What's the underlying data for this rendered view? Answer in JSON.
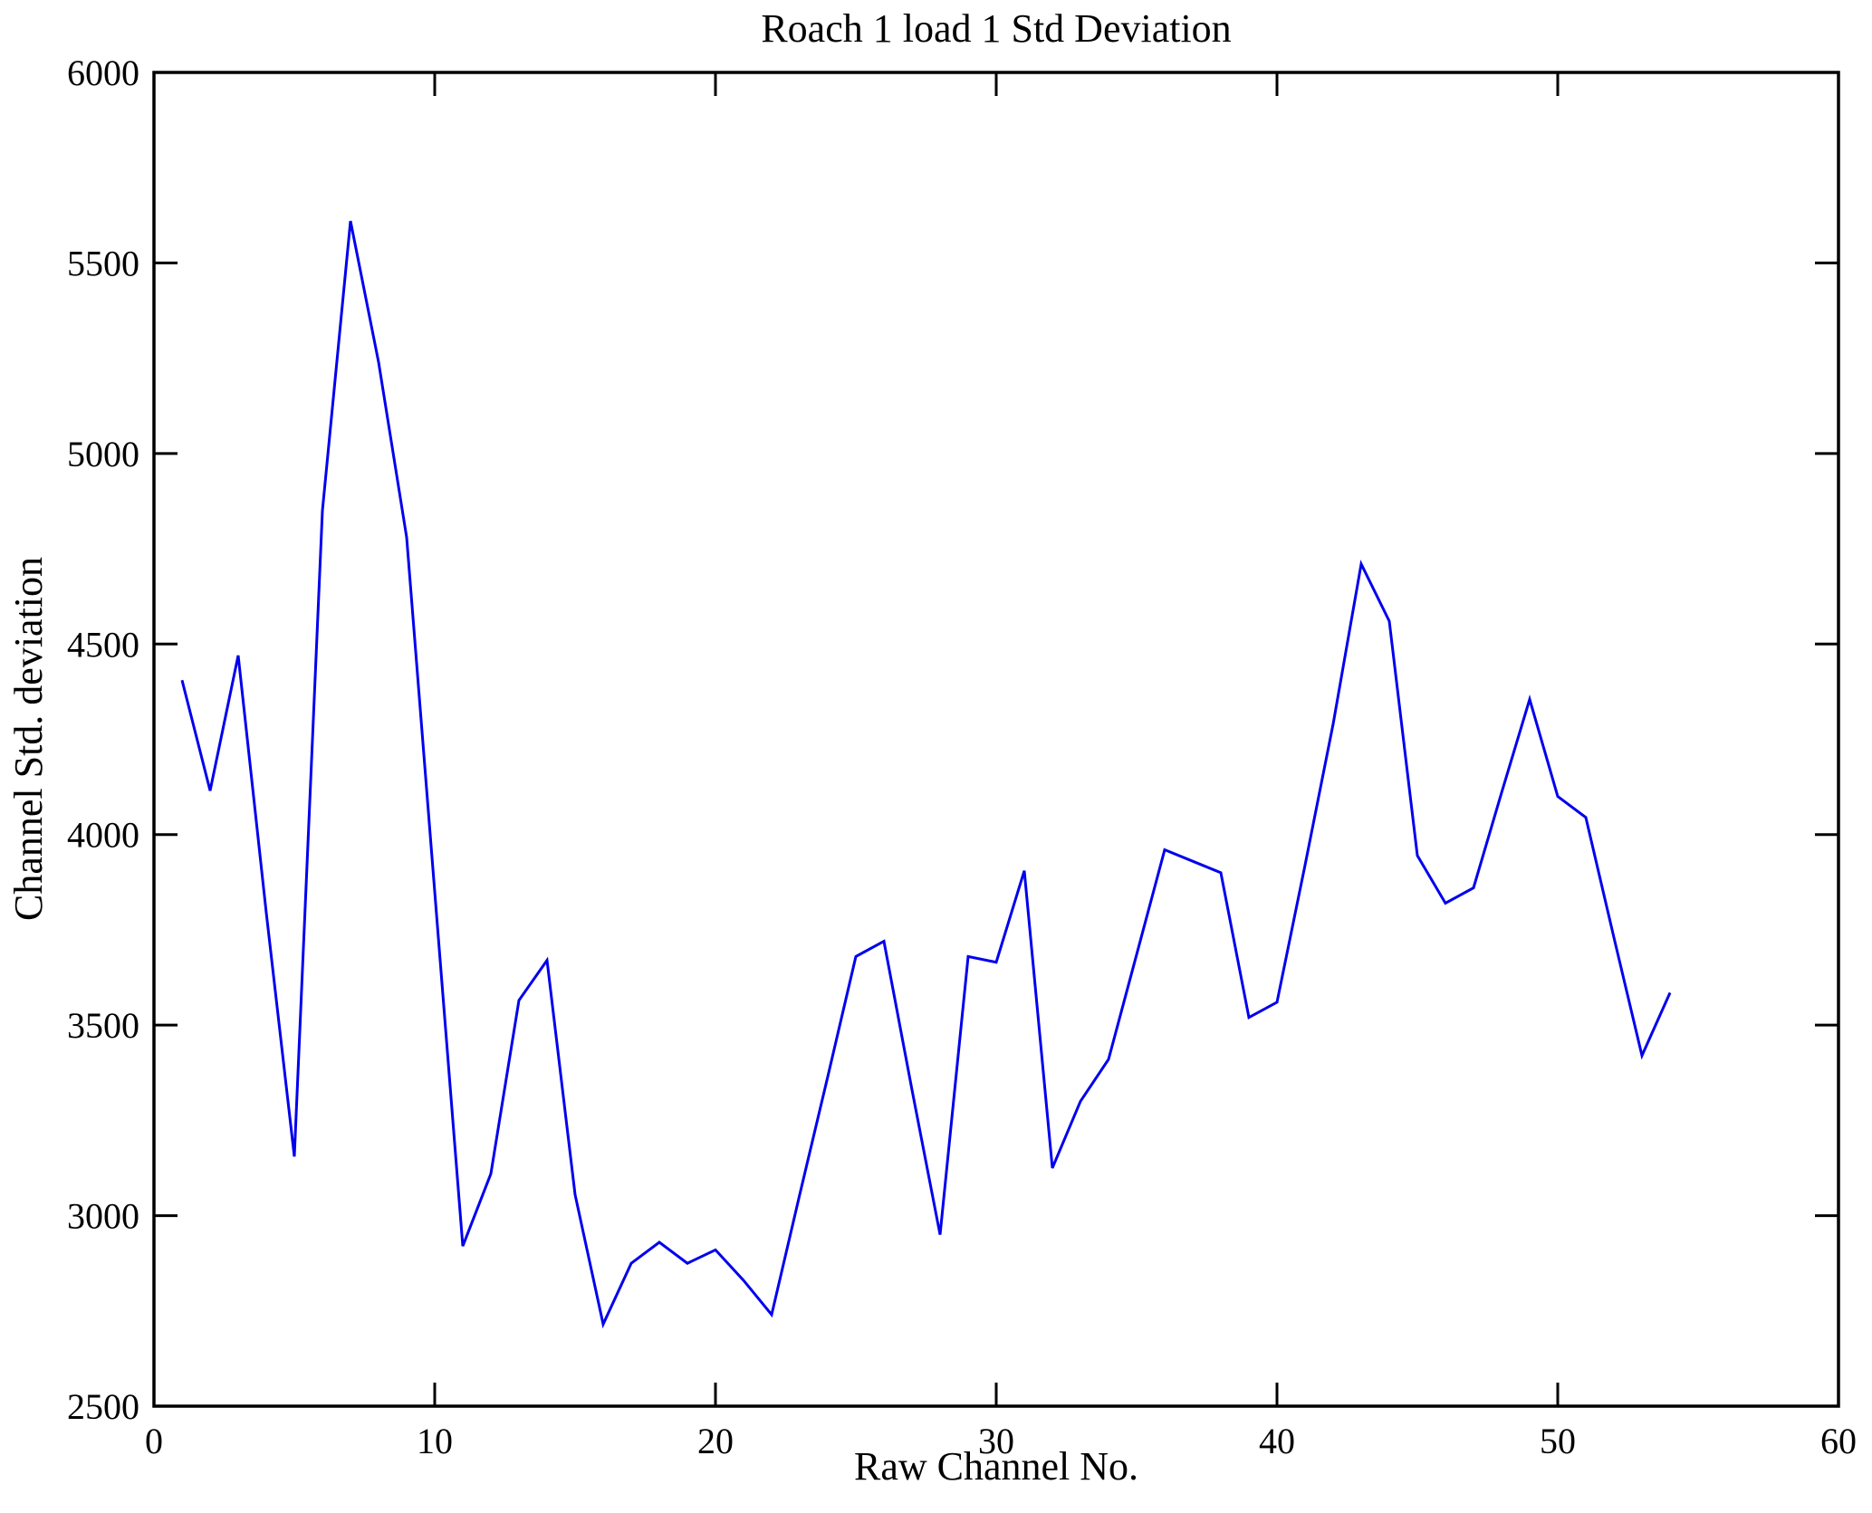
{
  "figure": {
    "title": "Roach 1 load 1 Std Deviation",
    "xlabel": "Raw Channel No.",
    "ylabel": "Channel Std. deviation"
  },
  "chart_data": {
    "type": "line",
    "title": "Roach 1 load 1 Std Deviation",
    "xlabel": "Raw Channel No.",
    "ylabel": "Channel Std. deviation",
    "xlim": [
      0,
      60
    ],
    "ylim": [
      2500,
      6000
    ],
    "xticks": [
      0,
      10,
      20,
      30,
      40,
      50,
      60
    ],
    "yticks": [
      2500,
      3000,
      3500,
      4000,
      4500,
      5000,
      5500,
      6000
    ],
    "grid": false,
    "legend_position": "none",
    "line_color": "#0000ee",
    "axis_color": "#000000",
    "background_color": "#ffffff",
    "x": [
      1,
      2,
      3,
      4,
      5,
      6,
      7,
      8,
      9,
      10,
      11,
      12,
      13,
      14,
      15,
      16,
      17,
      18,
      19,
      20,
      21,
      22,
      23,
      24,
      25,
      26,
      27,
      28,
      29,
      30,
      31,
      32,
      33,
      34,
      35,
      36,
      37,
      38,
      39,
      40,
      41,
      42,
      43,
      44,
      45,
      46,
      47,
      48,
      49,
      50,
      51,
      52,
      53,
      54
    ],
    "y": [
      4405,
      4115,
      4470,
      3795,
      3155,
      4850,
      5610,
      5240,
      4780,
      3850,
      2920,
      3110,
      3565,
      3670,
      3055,
      2715,
      2875,
      2930,
      2875,
      2910,
      2830,
      2740,
      3055,
      3365,
      3680,
      3720,
      3330,
      2950,
      3680,
      3665,
      3905,
      3125,
      3300,
      3410,
      3685,
      3960,
      3930,
      3900,
      3520,
      3560,
      3920,
      4290,
      4710,
      4560,
      3945,
      3820,
      3860,
      4110,
      4355,
      4100,
      4045,
      3730,
      3420,
      3585
    ]
  }
}
